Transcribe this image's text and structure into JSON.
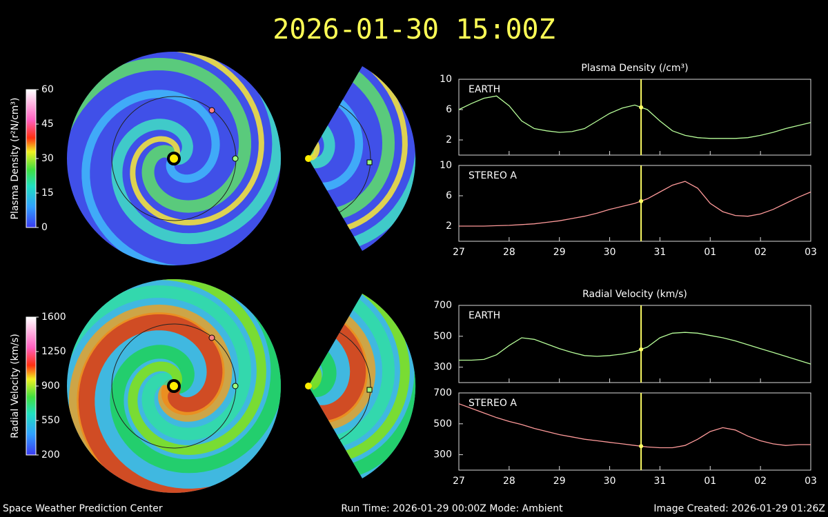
{
  "title": "2026-01-30 15:00Z",
  "footer": {
    "left": "Space Weather Prediction Center",
    "center": "Run Time: 2026-01-29 00:00Z  Mode: Ambient",
    "right": "Image Created: 2026-01-29 01:26Z"
  },
  "colorbars": [
    {
      "label": "Plasma Density (r²N/cm³)",
      "lim": [
        0,
        60
      ],
      "ticks": [
        0,
        15,
        30,
        45,
        60
      ]
    },
    {
      "label": "Radial Velocity (km/s)",
      "lim": [
        200,
        1600
      ],
      "ticks": [
        200,
        550,
        900,
        1250,
        1600
      ]
    }
  ],
  "chart_data": [
    {
      "type": "line",
      "title": "Plasma Density (/cm³)",
      "xlim": [
        0,
        7
      ],
      "ylim": [
        0,
        10
      ],
      "yticks": [
        2,
        6,
        10
      ],
      "cursor_x": 3.625,
      "x": [
        0,
        0.25,
        0.5,
        0.75,
        1,
        1.25,
        1.5,
        1.75,
        2,
        2.25,
        2.5,
        2.75,
        3,
        3.25,
        3.5,
        3.75,
        4,
        4.25,
        4.5,
        4.75,
        5,
        5.25,
        5.5,
        5.75,
        6,
        6.25,
        6.5,
        6.75,
        7
      ],
      "series": [
        {
          "name": "EARTH",
          "color": "#b8ff9a",
          "values": [
            6.0,
            6.8,
            7.5,
            7.8,
            6.5,
            4.5,
            3.5,
            3.2,
            3.0,
            3.1,
            3.5,
            4.5,
            5.5,
            6.2,
            6.6,
            6.0,
            4.5,
            3.2,
            2.6,
            2.3,
            2.2,
            2.2,
            2.2,
            2.3,
            2.6,
            3.0,
            3.5,
            3.9,
            4.3
          ]
        }
      ]
    },
    {
      "type": "line",
      "xlim": [
        0,
        7
      ],
      "ylim": [
        0,
        10
      ],
      "yticks": [
        2,
        6,
        10
      ],
      "cursor_x": 3.625,
      "xticks": [
        {
          "value": 0,
          "label": "27"
        },
        {
          "value": 1,
          "label": "28"
        },
        {
          "value": 2,
          "label": "29"
        },
        {
          "value": 3,
          "label": "30"
        },
        {
          "value": 4,
          "label": "31"
        },
        {
          "value": 5,
          "label": "01"
        },
        {
          "value": 6,
          "label": "02"
        },
        {
          "value": 7,
          "label": "03"
        }
      ],
      "x": [
        0,
        0.25,
        0.5,
        0.75,
        1,
        1.25,
        1.5,
        1.75,
        2,
        2.25,
        2.5,
        2.75,
        3,
        3.25,
        3.5,
        3.75,
        4,
        4.25,
        4.5,
        4.75,
        5,
        5.25,
        5.5,
        5.75,
        6,
        6.25,
        6.5,
        6.75,
        7
      ],
      "series": [
        {
          "name": "STEREO A",
          "color": "#ff9a9a",
          "values": [
            2.0,
            2.0,
            2.0,
            2.05,
            2.1,
            2.2,
            2.3,
            2.5,
            2.7,
            3.0,
            3.3,
            3.7,
            4.2,
            4.6,
            5.0,
            5.6,
            6.5,
            7.4,
            7.9,
            7.0,
            5.0,
            3.9,
            3.4,
            3.3,
            3.6,
            4.2,
            5.0,
            5.8,
            6.5
          ]
        }
      ]
    },
    {
      "type": "line",
      "title": "Radial Velocity (km/s)",
      "xlim": [
        0,
        7
      ],
      "ylim": [
        200,
        700
      ],
      "yticks": [
        300,
        500,
        700
      ],
      "cursor_x": 3.625,
      "x": [
        0,
        0.25,
        0.5,
        0.75,
        1,
        1.25,
        1.5,
        1.75,
        2,
        2.25,
        2.5,
        2.75,
        3,
        3.25,
        3.5,
        3.75,
        4,
        4.25,
        4.5,
        4.75,
        5,
        5.25,
        5.5,
        5.75,
        6,
        6.25,
        6.5,
        6.75,
        7
      ],
      "series": [
        {
          "name": "EARTH",
          "color": "#b8ff9a",
          "values": [
            345,
            345,
            350,
            380,
            440,
            490,
            480,
            450,
            420,
            395,
            375,
            370,
            375,
            385,
            400,
            430,
            490,
            520,
            525,
            520,
            505,
            490,
            470,
            445,
            420,
            395,
            370,
            345,
            320
          ]
        }
      ]
    },
    {
      "type": "line",
      "xlim": [
        0,
        7
      ],
      "ylim": [
        200,
        700
      ],
      "yticks": [
        300,
        500,
        700
      ],
      "cursor_x": 3.625,
      "xticks": [
        {
          "value": 0,
          "label": "27"
        },
        {
          "value": 1,
          "label": "28"
        },
        {
          "value": 2,
          "label": "29"
        },
        {
          "value": 3,
          "label": "30"
        },
        {
          "value": 4,
          "label": "31"
        },
        {
          "value": 5,
          "label": "01"
        },
        {
          "value": 6,
          "label": "02"
        },
        {
          "value": 7,
          "label": "03"
        }
      ],
      "x": [
        0,
        0.25,
        0.5,
        0.75,
        1,
        1.25,
        1.5,
        1.75,
        2,
        2.25,
        2.5,
        2.75,
        3,
        3.25,
        3.5,
        3.75,
        4,
        4.25,
        4.5,
        4.75,
        5,
        5.25,
        5.5,
        5.75,
        6,
        6.25,
        6.5,
        6.75,
        7
      ],
      "series": [
        {
          "name": "STEREO A",
          "color": "#ff9a9a",
          "values": [
            630,
            600,
            570,
            540,
            515,
            495,
            470,
            450,
            430,
            415,
            400,
            390,
            380,
            370,
            360,
            350,
            345,
            345,
            360,
            400,
            450,
            475,
            460,
            420,
            390,
            370,
            360,
            365,
            365
          ]
        }
      ]
    }
  ]
}
